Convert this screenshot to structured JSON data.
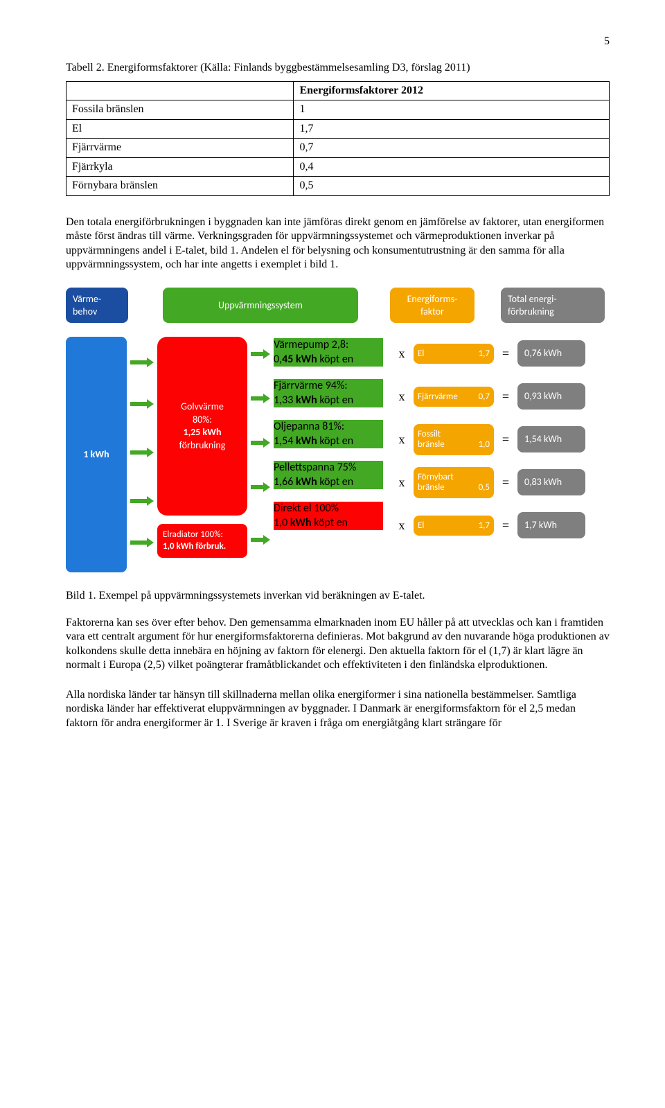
{
  "page_number": "5",
  "table": {
    "caption": "Tabell 2. Energiformsfaktorer (Källa: Finlands byggbestämmelsesamling D3, förslag 2011)",
    "header": "Energiformsfaktorer 2012",
    "rows": [
      {
        "label": "Fossila bränslen",
        "value": "1"
      },
      {
        "label": "El",
        "value": "1,7"
      },
      {
        "label": "Fjärrvärme",
        "value": "0,7"
      },
      {
        "label": "Fjärrkyla",
        "value": "0,4"
      },
      {
        "label": "Förnybara bränslen",
        "value": "0,5"
      }
    ]
  },
  "para1": "Den totala energiförbrukningen i byggnaden kan inte jämföras direkt genom en jämförelse av faktorer, utan energiformen måste först ändras till värme. Verkningsgraden för uppvärmningssystemet och värmeproduktionen inverkar på uppvärmningens andel i E-talet, bild 1. Andelen el för belysning och konsumentutrustning är den samma för alla uppvärmningssystem, och har inte angetts i exemplet i bild 1.",
  "diagram": {
    "headers": {
      "behov": "Värme-\nbehov",
      "system": "Uppvärmningssystem",
      "faktor": "Energiforms-\nfaktor",
      "total": "Total energi-\nförbrukning"
    },
    "left": "1 kWh",
    "golv": {
      "line1": "Golvvärme",
      "line2": "80%:",
      "line3": "1,25 kWh",
      "line4": "förbrukning"
    },
    "elrad": {
      "line1": "Elradiator 100%:",
      "line2": "1,0 kWh förbruk."
    },
    "rows": [
      {
        "sysA": "Värmepump   2,8:",
        "sysB_pre": "0,",
        "sysB_bold": "45 kWh",
        "sysB_post": " köpt en",
        "factorA": "El",
        "factorB": "1,7",
        "total": "0,76 kWh"
      },
      {
        "sysA": "Fjärrvärme  94%:",
        "sysB_pre": "1,33 ",
        "sysB_bold": "kWh",
        "sysB_post": " köpt en",
        "factorA": "Fjärrvärme",
        "factorB": "0,7",
        "total": "0,93 kWh"
      },
      {
        "sysA": "Oljepanna 81%:",
        "sysB_pre": "1,54 ",
        "sysB_bold": "kWh",
        "sysB_post": " köpt en",
        "factorA": "Fossilt",
        "factorA2": "bränsle",
        "factorB": "1,0",
        "total": "1,54 kWh"
      },
      {
        "sysA": "Pellettspanna 75%",
        "sysB_pre": "1,66 ",
        "sysB_bold": "kWh",
        "sysB_post": " köpt en",
        "factorA": "Förnybart",
        "factorA2": "bränsle",
        "factorB": "0,5",
        "total": "0,83 kWh"
      },
      {
        "sysA": "Direkt el 100%",
        "sysB_pre": "1,0 ",
        "sysB_bold": "kWh",
        "sysB_post": " köpt en",
        "factorA": "El",
        "factorB": "1,7",
        "total": "1,7 kWh",
        "red": true
      }
    ],
    "arrow_color": "#43a824"
  },
  "fig_caption": "Bild 1. Exempel på uppvärmningssystemets inverkan vid beräkningen av E-talet.",
  "para2": "Faktorerna kan ses över efter behov. Den gemensamma elmarknaden inom EU håller på att utvecklas och kan i framtiden vara ett centralt argument för hur energiformsfaktorerna definieras. Mot bakgrund av den nuvarande höga produktionen av kolkondens skulle detta innebära en höjning av faktorn för elenergi. Den aktuella faktorn för el (1,7) är klart lägre än normalt i Europa (2,5) vilket poängterar framåtblickandet och effektiviteten i den finländska elproduktionen.",
  "para3": "Alla nordiska länder tar hänsyn till skillnaderna mellan olika energiformer i sina nationella bestämmelser. Samtliga nordiska länder har effektiverat eluppvärmningen av byggnader. I Danmark är energiformsfaktorn för el 2,5 medan faktorn för andra energiformer är 1. I Sverige är kraven i fråga om energiåtgång klart strängare för"
}
